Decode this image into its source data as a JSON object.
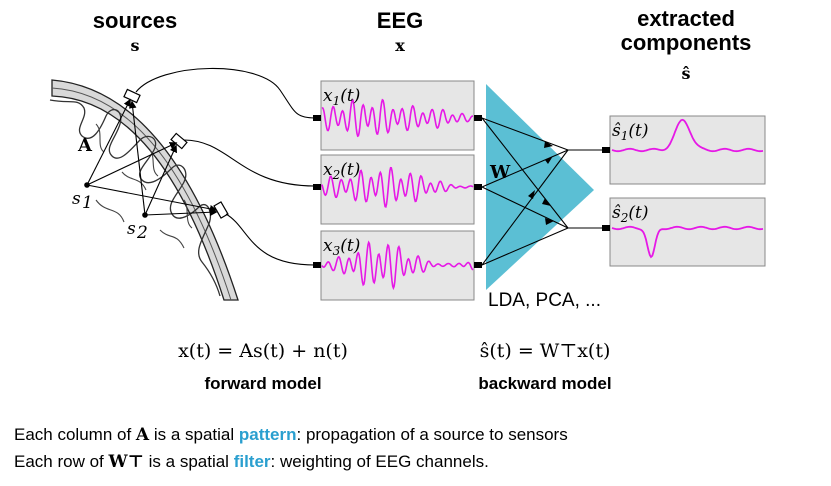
{
  "headers": {
    "sources": "sources",
    "sources_symbol": "s",
    "eeg": "EEG",
    "eeg_symbol": "x",
    "extracted_line1": "extracted",
    "extracted_line2": "components",
    "extracted_symbol": "ŝ"
  },
  "labels": {
    "mixing_matrix": "A",
    "source1": "s",
    "source1_sub": "1",
    "source2": "s",
    "source2_sub": "2",
    "unmixing_matrix": "W",
    "methods": "LDA, PCA, ..."
  },
  "eeg_channels": [
    {
      "name": "x",
      "sub": "1",
      "arg": "(t)"
    },
    {
      "name": "x",
      "sub": "2",
      "arg": "(t)"
    },
    {
      "name": "x",
      "sub": "3",
      "arg": "(t)"
    }
  ],
  "components": [
    {
      "name": "ŝ",
      "sub": "1",
      "arg": "(t)"
    },
    {
      "name": "ŝ",
      "sub": "2",
      "arg": "(t)"
    }
  ],
  "equations": {
    "forward": "x(t) = As(t) + n(t)",
    "forward_label": "forward model",
    "backward": "ŝ(t) = W⊤x(t)",
    "backward_label": "backward model"
  },
  "caption": {
    "line1_a": "Each column of ",
    "line1_sym": "A",
    "line1_b": " is a spatial ",
    "line1_hl": "pattern",
    "line1_c": ": propagation of a source to sensors",
    "line2_a": "Each row of ",
    "line2_sym": "W⊤",
    "line2_b": " is a spatial ",
    "line2_hl": "filter",
    "line2_c": ": weighting of EEG channels."
  },
  "colors": {
    "signal": "#e619e6",
    "highlight": "#2a9fcf",
    "triangle": "#5bbfd4",
    "box_fill": "#e6e6e6"
  }
}
